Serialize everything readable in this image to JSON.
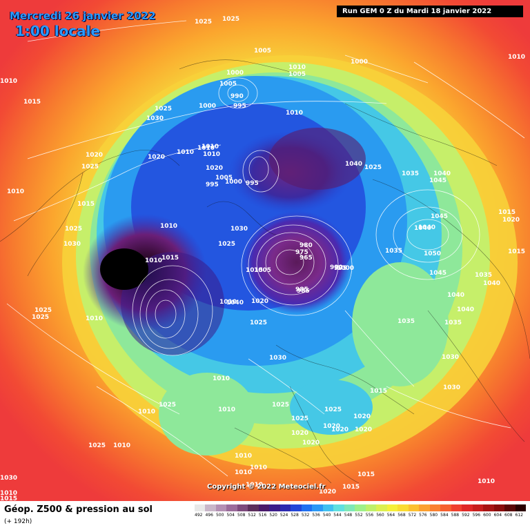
{
  "header": {
    "date": "Mercredi 26 janvier 2022",
    "local_hour": "1:00 locale",
    "run": "Run GEM 0 Z du Mardi 18 janvier 2022",
    "copyright": "Copyright © 2022 Meteociel.fr"
  },
  "legend": {
    "title": "Géop. Z500 & pression au sol",
    "subtitle": "(+ 192h)",
    "scale_labels": [
      "492",
      "496",
      "500",
      "504",
      "508",
      "512",
      "516",
      "520",
      "524",
      "528",
      "532",
      "536",
      "540",
      "544",
      "548",
      "552",
      "556",
      "560",
      "564",
      "568",
      "572",
      "576",
      "580",
      "584",
      "588",
      "592",
      "596",
      "600",
      "604",
      "608",
      "612"
    ],
    "scale_colors": [
      "#e8e8e8",
      "#c9b6c9",
      "#b48fb4",
      "#9b6b9b",
      "#7d4a7d",
      "#5c2f5c",
      "#4a1a6a",
      "#3b1c8a",
      "#2c2ab0",
      "#2346d8",
      "#2070f0",
      "#2a98f5",
      "#3fc0f0",
      "#5fe0e0",
      "#7ee8b8",
      "#9ef08a",
      "#bef06a",
      "#dcf050",
      "#f5f03a",
      "#fadc32",
      "#fcc030",
      "#fca030",
      "#fa8030",
      "#f66030",
      "#f04030",
      "#e02828",
      "#c81e1e",
      "#a81414",
      "#8a0c0c",
      "#5a0606",
      "#2a0000"
    ],
    "chart_type": "Z500 geopotential height colour fill with sea-level pressure isobars"
  },
  "pressure_labels": [
    "1025",
    "1025",
    "1010",
    "1015",
    "1025",
    "1030",
    "1020",
    "1020",
    "1025",
    "1010",
    "1015",
    "1025",
    "1030",
    "1010",
    "1010",
    "1010",
    "1005",
    "1005",
    "1000",
    "990",
    "995",
    "1000",
    "1010",
    "1005",
    "1010",
    "1010",
    "1000",
    "995",
    "995",
    "1010",
    "1005",
    "1000",
    "1010",
    "1020",
    "1010",
    "1030",
    "1025",
    "1015",
    "1015",
    "1005",
    "985",
    "980",
    "975",
    "965",
    "985",
    "990",
    "995",
    "1000",
    "1020",
    "1025",
    "1010",
    "1040",
    "1040",
    "1025",
    "1035",
    "1040",
    "1045",
    "1045",
    "1040",
    "1040",
    "1035",
    "1050",
    "1045",
    "1040",
    "1040",
    "1035",
    "1035",
    "1030",
    "1035",
    "1040",
    "1015",
    "1020",
    "1015",
    "1010",
    "1030",
    "1015",
    "1025",
    "1025",
    "1025",
    "1020",
    "1020",
    "1020",
    "1020",
    "1020",
    "1020",
    "1030",
    "1010",
    "1010",
    "1010",
    "1010",
    "1010",
    "1025",
    "1030",
    "1010",
    "1015",
    "1010",
    "1010",
    "1010",
    "1015",
    "1015",
    "1020",
    "1025",
    "1025",
    "1025",
    "1010"
  ]
}
